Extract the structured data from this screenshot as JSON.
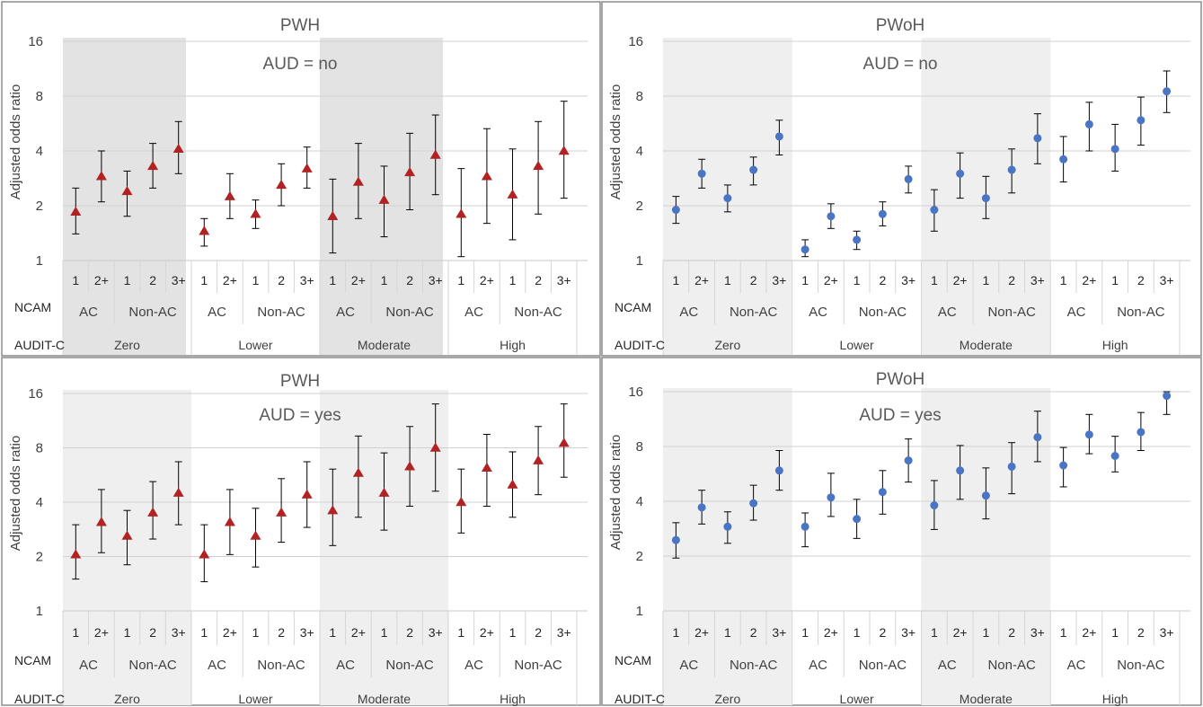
{
  "chart_data": [
    {
      "type": "scatter",
      "title": "PWH",
      "subtitle": "AUD = no",
      "ylabel": "Adjusted odds ratio",
      "y_scale": "log2",
      "ylim": [
        1,
        16
      ],
      "y_ticks": [
        "1",
        "2",
        "4",
        "8",
        "16"
      ],
      "marker": "triangle",
      "colors": {
        "marker": "#b22222",
        "shade": "#e3e3e3"
      },
      "row_labels": [
        "NCAM",
        "AUDIT-C"
      ],
      "ncam_labels": [
        "1",
        "2+",
        "1",
        "2",
        "3+",
        "1",
        "2+",
        "1",
        "2",
        "3+",
        "1",
        "2+",
        "1",
        "2",
        "3+",
        "1",
        "2+",
        "1",
        "2",
        "3+"
      ],
      "ac_groups": [
        "AC",
        "Non-AC",
        "AC",
        "Non-AC",
        "AC",
        "Non-AC",
        "AC",
        "Non-AC"
      ],
      "audit_groups": [
        "Zero",
        "Lower",
        "Moderate",
        "High"
      ],
      "points": [
        {
          "y": 1.85,
          "lo": 1.4,
          "hi": 2.5
        },
        {
          "y": 2.9,
          "lo": 2.1,
          "hi": 4.0
        },
        {
          "y": 2.4,
          "lo": 1.75,
          "hi": 3.1
        },
        {
          "y": 3.3,
          "lo": 2.5,
          "hi": 4.4
        },
        {
          "y": 4.1,
          "lo": 3.0,
          "hi": 5.8
        },
        {
          "y": 1.45,
          "lo": 1.2,
          "hi": 1.7
        },
        {
          "y": 2.25,
          "lo": 1.7,
          "hi": 3.0
        },
        {
          "y": 1.8,
          "lo": 1.5,
          "hi": 2.15
        },
        {
          "y": 2.6,
          "lo": 2.0,
          "hi": 3.4
        },
        {
          "y": 3.2,
          "lo": 2.5,
          "hi": 4.2
        },
        {
          "y": 1.75,
          "lo": 1.1,
          "hi": 2.8
        },
        {
          "y": 2.7,
          "lo": 1.7,
          "hi": 4.4
        },
        {
          "y": 2.15,
          "lo": 1.35,
          "hi": 3.3
        },
        {
          "y": 3.05,
          "lo": 1.9,
          "hi": 5.0
        },
        {
          "y": 3.8,
          "lo": 2.3,
          "hi": 6.3
        },
        {
          "y": 1.8,
          "lo": 1.05,
          "hi": 3.2
        },
        {
          "y": 2.9,
          "lo": 1.6,
          "hi": 5.3
        },
        {
          "y": 2.3,
          "lo": 1.3,
          "hi": 4.1
        },
        {
          "y": 3.3,
          "lo": 1.8,
          "hi": 5.8
        },
        {
          "y": 4.0,
          "lo": 2.2,
          "hi": 7.5
        }
      ]
    },
    {
      "type": "scatter",
      "title": "PWoH",
      "subtitle": "AUD = no",
      "ylabel": "Adjusted odds ratio",
      "y_scale": "log2",
      "ylim": [
        1,
        16
      ],
      "y_ticks": [
        "1",
        "2",
        "4",
        "8",
        "16"
      ],
      "marker": "circle",
      "colors": {
        "marker": "#4a74c4",
        "shade": "#efefef"
      },
      "row_labels": [
        "NCAM",
        "AUDIT-C"
      ],
      "ncam_labels": [
        "1",
        "2+",
        "1",
        "2",
        "3+",
        "1",
        "2+",
        "1",
        "2",
        "3+",
        "1",
        "2+",
        "1",
        "2",
        "3+",
        "1",
        "2+",
        "1",
        "2",
        "3+"
      ],
      "ac_groups": [
        "AC",
        "Non-AC",
        "AC",
        "Non-AC",
        "AC",
        "Non-AC",
        "AC",
        "Non-AC"
      ],
      "audit_groups": [
        "Zero",
        "Lower",
        "Moderate",
        "High"
      ],
      "points": [
        {
          "y": 1.9,
          "lo": 1.6,
          "hi": 2.25
        },
        {
          "y": 3.0,
          "lo": 2.5,
          "hi": 3.6
        },
        {
          "y": 2.2,
          "lo": 1.85,
          "hi": 2.6
        },
        {
          "y": 3.15,
          "lo": 2.6,
          "hi": 3.7
        },
        {
          "y": 4.8,
          "lo": 3.8,
          "hi": 5.9
        },
        {
          "y": 1.15,
          "lo": 1.05,
          "hi": 1.3
        },
        {
          "y": 1.75,
          "lo": 1.5,
          "hi": 2.05
        },
        {
          "y": 1.3,
          "lo": 1.15,
          "hi": 1.45
        },
        {
          "y": 1.8,
          "lo": 1.55,
          "hi": 2.1
        },
        {
          "y": 2.8,
          "lo": 2.35,
          "hi": 3.3
        },
        {
          "y": 1.9,
          "lo": 1.45,
          "hi": 2.45
        },
        {
          "y": 3.0,
          "lo": 2.2,
          "hi": 3.9
        },
        {
          "y": 2.2,
          "lo": 1.7,
          "hi": 2.9
        },
        {
          "y": 3.15,
          "lo": 2.35,
          "hi": 4.1
        },
        {
          "y": 4.7,
          "lo": 3.4,
          "hi": 6.4
        },
        {
          "y": 3.6,
          "lo": 2.7,
          "hi": 4.8
        },
        {
          "y": 5.6,
          "lo": 4.0,
          "hi": 7.4
        },
        {
          "y": 4.1,
          "lo": 3.1,
          "hi": 5.6
        },
        {
          "y": 5.9,
          "lo": 4.3,
          "hi": 7.9
        },
        {
          "y": 8.5,
          "lo": 6.5,
          "hi": 11.0
        }
      ]
    },
    {
      "type": "scatter",
      "title": "PWH",
      "subtitle": "AUD = yes",
      "ylabel": "Adjusted odds ratio",
      "y_scale": "log2",
      "ylim": [
        1,
        16
      ],
      "y_ticks": [
        "1",
        "2",
        "4",
        "8",
        "16"
      ],
      "marker": "triangle",
      "colors": {
        "marker": "#b22222",
        "shade": "#efefef"
      },
      "row_labels": [
        "NCAM",
        "AUDIT-C"
      ],
      "ncam_labels": [
        "1",
        "2+",
        "1",
        "2",
        "3+",
        "1",
        "2+",
        "1",
        "2",
        "3+",
        "1",
        "2+",
        "1",
        "2",
        "3+",
        "1",
        "2+",
        "1",
        "2",
        "3+"
      ],
      "ac_groups": [
        "AC",
        "Non-AC",
        "AC",
        "Non-AC",
        "AC",
        "Non-AC",
        "AC",
        "Non-AC"
      ],
      "audit_groups": [
        "Zero",
        "Lower",
        "Moderate",
        "High"
      ],
      "points": [
        {
          "y": 2.05,
          "lo": 1.5,
          "hi": 3.0
        },
        {
          "y": 3.1,
          "lo": 2.1,
          "hi": 4.7
        },
        {
          "y": 2.6,
          "lo": 1.8,
          "hi": 3.6
        },
        {
          "y": 3.5,
          "lo": 2.5,
          "hi": 5.2
        },
        {
          "y": 4.5,
          "lo": 3.0,
          "hi": 6.7
        },
        {
          "y": 2.05,
          "lo": 1.45,
          "hi": 3.0
        },
        {
          "y": 3.1,
          "lo": 2.05,
          "hi": 4.7
        },
        {
          "y": 2.6,
          "lo": 1.75,
          "hi": 3.7
        },
        {
          "y": 3.5,
          "lo": 2.4,
          "hi": 5.4
        },
        {
          "y": 4.4,
          "lo": 2.9,
          "hi": 6.7
        },
        {
          "y": 3.6,
          "lo": 2.3,
          "hi": 6.1
        },
        {
          "y": 5.8,
          "lo": 3.3,
          "hi": 9.3
        },
        {
          "y": 4.5,
          "lo": 2.8,
          "hi": 7.5
        },
        {
          "y": 6.3,
          "lo": 3.8,
          "hi": 10.5
        },
        {
          "y": 8.0,
          "lo": 4.6,
          "hi": 14.0
        },
        {
          "y": 4.0,
          "lo": 2.7,
          "hi": 6.1
        },
        {
          "y": 6.2,
          "lo": 3.8,
          "hi": 9.5
        },
        {
          "y": 5.0,
          "lo": 3.3,
          "hi": 7.6
        },
        {
          "y": 6.8,
          "lo": 4.4,
          "hi": 10.5
        },
        {
          "y": 8.5,
          "lo": 5.5,
          "hi": 14.0
        }
      ]
    },
    {
      "type": "scatter",
      "title": "PWoH",
      "subtitle": "AUD = yes",
      "ylabel": "Adjusted odds ratio",
      "y_scale": "log2",
      "ylim": [
        1,
        16
      ],
      "y_ticks": [
        "1",
        "2",
        "4",
        "8",
        "16"
      ],
      "marker": "circle",
      "colors": {
        "marker": "#4a74c4",
        "shade": "#efefef"
      },
      "row_labels": [
        "NCAM",
        "AUDIT-C"
      ],
      "ncam_labels": [
        "1",
        "2+",
        "1",
        "2",
        "3+",
        "1",
        "2+",
        "1",
        "2",
        "3+",
        "1",
        "2+",
        "1",
        "2",
        "3+",
        "1",
        "2+",
        "1",
        "2",
        "3+"
      ],
      "ac_groups": [
        "AC",
        "Non-AC",
        "AC",
        "Non-AC",
        "AC",
        "Non-AC",
        "AC",
        "Non-AC"
      ],
      "audit_groups": [
        "Zero",
        "Lower",
        "Moderate",
        "High"
      ],
      "points": [
        {
          "y": 2.45,
          "lo": 1.95,
          "hi": 3.05
        },
        {
          "y": 3.7,
          "lo": 3.0,
          "hi": 4.6
        },
        {
          "y": 2.9,
          "lo": 2.35,
          "hi": 3.5
        },
        {
          "y": 3.9,
          "lo": 3.15,
          "hi": 4.9
        },
        {
          "y": 5.9,
          "lo": 4.6,
          "hi": 7.6
        },
        {
          "y": 2.9,
          "lo": 2.25,
          "hi": 3.45
        },
        {
          "y": 4.2,
          "lo": 3.3,
          "hi": 5.7
        },
        {
          "y": 3.2,
          "lo": 2.5,
          "hi": 4.1
        },
        {
          "y": 4.5,
          "lo": 3.4,
          "hi": 5.9
        },
        {
          "y": 6.7,
          "lo": 5.1,
          "hi": 8.8
        },
        {
          "y": 3.8,
          "lo": 2.8,
          "hi": 5.2
        },
        {
          "y": 5.9,
          "lo": 4.1,
          "hi": 8.1
        },
        {
          "y": 4.3,
          "lo": 3.2,
          "hi": 6.1
        },
        {
          "y": 6.2,
          "lo": 4.4,
          "hi": 8.4
        },
        {
          "y": 9.0,
          "lo": 6.6,
          "hi": 12.5
        },
        {
          "y": 6.3,
          "lo": 4.8,
          "hi": 7.9
        },
        {
          "y": 9.3,
          "lo": 7.3,
          "hi": 12.0
        },
        {
          "y": 7.1,
          "lo": 5.8,
          "hi": 9.1
        },
        {
          "y": 9.6,
          "lo": 7.6,
          "hi": 12.3
        },
        {
          "y": 15.2,
          "lo": 12.0,
          "hi": 16.0
        }
      ]
    }
  ]
}
